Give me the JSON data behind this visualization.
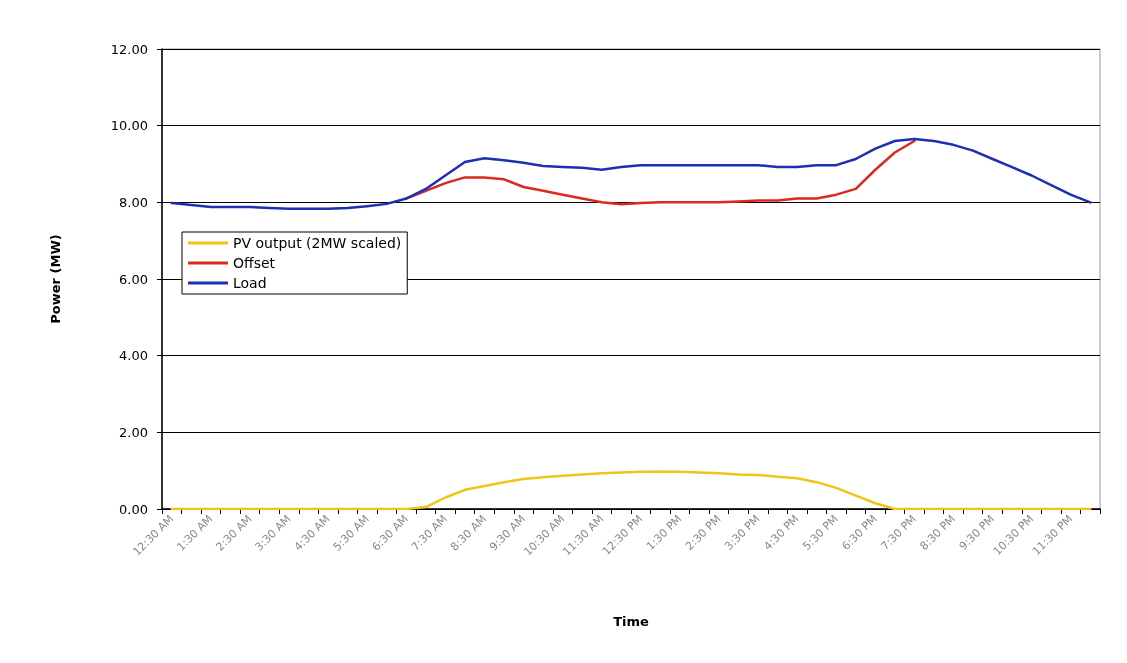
{
  "chart_data": {
    "type": "line",
    "xlabel": "Time",
    "ylabel": "Power (MW)",
    "categories": [
      "12:30 AM",
      null,
      "1:30 AM",
      null,
      "2:30 AM",
      null,
      "3:30 AM",
      null,
      "4:30 AM",
      null,
      "5:30 AM",
      null,
      "6:30 AM",
      null,
      "7:30 AM",
      null,
      "8:30 AM",
      null,
      "9:30 AM",
      null,
      "10:30 AM",
      null,
      "11:30 AM",
      null,
      "12:30 PM",
      null,
      "1:30 PM",
      null,
      "2:30 PM",
      null,
      "3:30 PM",
      null,
      "4:30 PM",
      null,
      "5:30 PM",
      null,
      "6:30 PM",
      null,
      "7:30 PM",
      null,
      "8:30 PM",
      null,
      "9:30 PM",
      null,
      "10:30 PM",
      null,
      "11:30 PM",
      null
    ],
    "series": [
      {
        "name": "PV output (2MW scaled)",
        "color": "#f2c417",
        "values": [
          0,
          0,
          0,
          0,
          0,
          0,
          0,
          0,
          0,
          0,
          0,
          0,
          0,
          0.05,
          0.3,
          0.5,
          0.6,
          0.7,
          0.78,
          0.83,
          0.87,
          0.9,
          0.93,
          0.95,
          0.97,
          0.98,
          0.97,
          0.95,
          0.93,
          0.9,
          0.89,
          0.84,
          0.8,
          0.7,
          0.55,
          0.35,
          0.15,
          0,
          0,
          0,
          0,
          0,
          0,
          0,
          0,
          0,
          0,
          0
        ]
      },
      {
        "name": "Offset",
        "color": "#d92b1e",
        "values": [
          null,
          null,
          null,
          null,
          null,
          null,
          null,
          null,
          null,
          null,
          null,
          null,
          8.1,
          8.3,
          8.5,
          8.65,
          8.65,
          8.6,
          8.4,
          8.3,
          8.2,
          8.1,
          8.0,
          7.95,
          7.98,
          8.0,
          8.0,
          8.0,
          8.0,
          8.02,
          8.05,
          8.05,
          8.1,
          8.1,
          8.2,
          8.35,
          8.85,
          9.3,
          9.6,
          null,
          null,
          null,
          null,
          null,
          null,
          null,
          null,
          null
        ]
      },
      {
        "name": "Load",
        "color": "#1c2fb5",
        "values": [
          7.98,
          7.93,
          7.88,
          7.88,
          7.88,
          7.85,
          7.83,
          7.83,
          7.83,
          7.85,
          7.9,
          7.96,
          8.1,
          8.35,
          8.7,
          9.05,
          9.15,
          9.1,
          9.03,
          8.95,
          8.92,
          8.9,
          8.85,
          8.92,
          8.97,
          8.97,
          8.97,
          8.97,
          8.97,
          8.97,
          8.97,
          8.92,
          8.92,
          8.97,
          8.97,
          9.13,
          9.4,
          9.6,
          9.65,
          9.6,
          9.5,
          9.35,
          9.13,
          8.92,
          8.7,
          8.45,
          8.2,
          8.0
        ]
      }
    ],
    "ylim": [
      0,
      12
    ],
    "yticks": [
      {
        "value": 0,
        "label": "0.00"
      },
      {
        "value": 2,
        "label": "2.00"
      },
      {
        "value": 4,
        "label": "4.00"
      },
      {
        "value": 6,
        "label": "6.00"
      },
      {
        "value": 8,
        "label": "8.00"
      },
      {
        "value": 10,
        "label": "10.00"
      },
      {
        "value": 12,
        "label": "12.00"
      }
    ],
    "grid": "y",
    "legend": "left",
    "marker": "none",
    "line_style": "solid"
  }
}
